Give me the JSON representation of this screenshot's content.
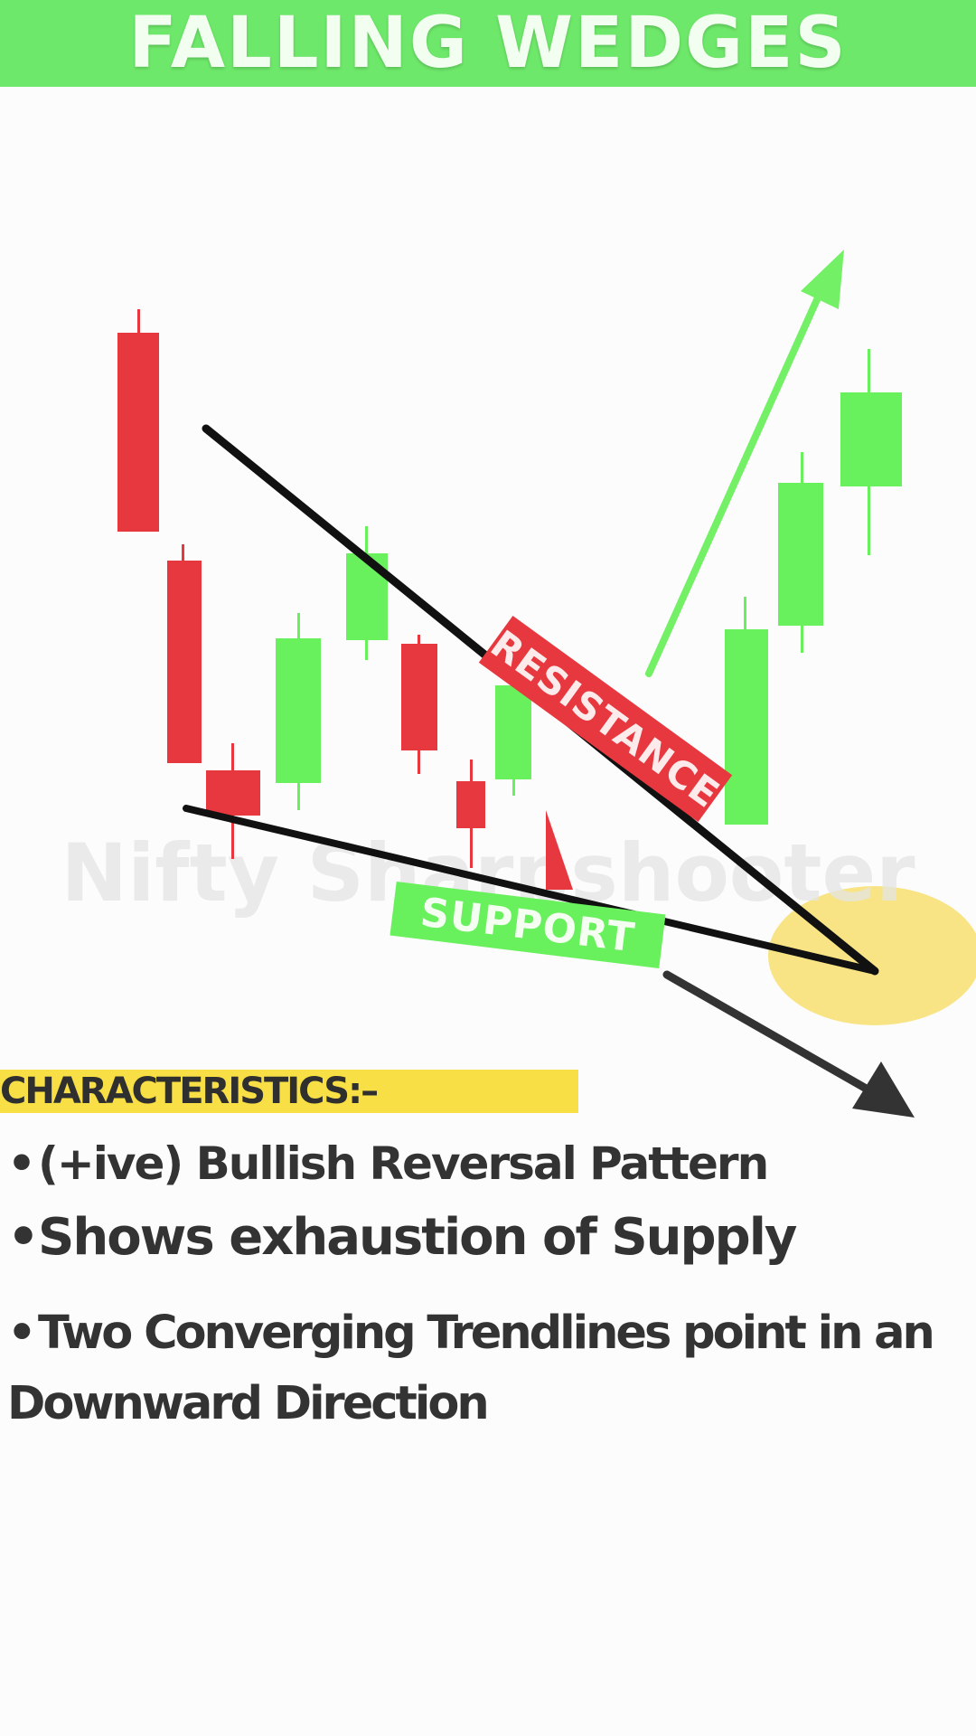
{
  "header": {
    "title": "FALLING WEDGES"
  },
  "diagram": {
    "watermark": "Nifty Sharpshooter",
    "resistance_label": "RESISTANCE",
    "support_label": "SUPPORT",
    "colors": {
      "bearish": "#e8383f",
      "bullish": "#69f05d",
      "trendline": "#111111",
      "breakout_arrow": "#73f065",
      "apex_highlight": "#f7df6e",
      "down_arrow": "#333333"
    },
    "icons": [
      "breakout-up-arrow-icon",
      "downward-arrow-icon",
      "apex-highlight-circle"
    ]
  },
  "characteristics": {
    "heading": "CHARACTERISTICS:–",
    "bullet_symbol": "•",
    "items": [
      "(+ive) Bullish Reversal Pattern",
      "Shows exhaustion of Supply",
      "Two Converging Trendlines point in an Downward Direction"
    ]
  }
}
